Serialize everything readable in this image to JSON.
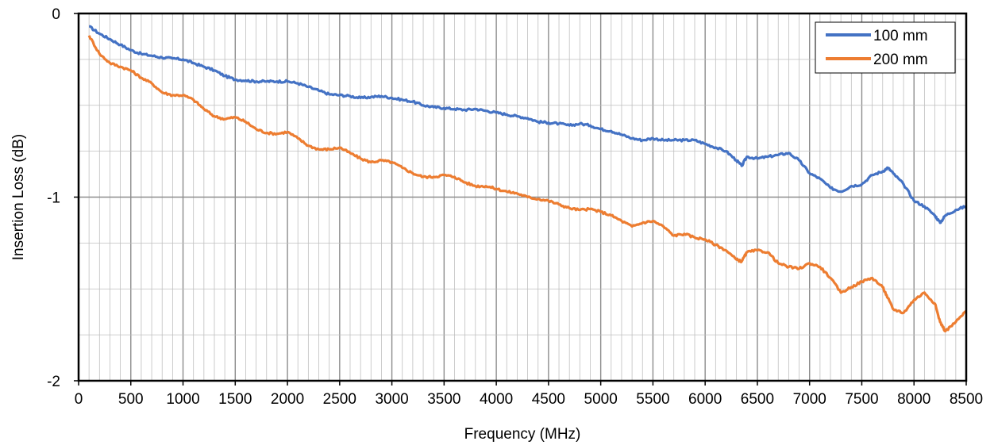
{
  "chart_data": {
    "type": "line",
    "title": "",
    "xlabel": "Frequency (MHz)",
    "ylabel": "Insertion Loss (dB)",
    "xlim": [
      0,
      8500
    ],
    "ylim": [
      -2,
      0
    ],
    "x_ticks": [
      0,
      500,
      1000,
      1500,
      2000,
      2500,
      3000,
      3500,
      4000,
      4500,
      5000,
      5500,
      6000,
      6500,
      7000,
      7500,
      8000,
      8500
    ],
    "x_tick_labels": [
      "0",
      "500",
      "1000",
      "1500",
      "2000",
      "2500",
      "3000",
      "3500",
      "4000",
      "4500",
      "5000",
      "5500",
      "6000",
      "6500",
      "7000",
      "7500",
      "8000",
      "8500"
    ],
    "y_ticks": [
      0,
      -1,
      -2
    ],
    "y_tick_labels": [
      "0",
      "-1",
      "-2"
    ],
    "grid": true,
    "legend_position": "top-right",
    "series": [
      {
        "name": "100 mm",
        "color": "#4472C4",
        "x": [
          100,
          200,
          300,
          400,
          500,
          600,
          700,
          800,
          900,
          1000,
          1100,
          1200,
          1300,
          1400,
          1500,
          1600,
          1700,
          1800,
          1900,
          2000,
          2100,
          2200,
          2300,
          2400,
          2500,
          2600,
          2700,
          2800,
          2900,
          3000,
          3100,
          3200,
          3300,
          3400,
          3500,
          3600,
          3700,
          3800,
          3900,
          4000,
          4100,
          4200,
          4300,
          4400,
          4500,
          4600,
          4700,
          4800,
          4900,
          5000,
          5100,
          5200,
          5300,
          5400,
          5500,
          5600,
          5700,
          5800,
          5900,
          6000,
          6100,
          6200,
          6300,
          6350,
          6400,
          6500,
          6600,
          6700,
          6800,
          6900,
          7000,
          7100,
          7200,
          7300,
          7400,
          7500,
          7600,
          7700,
          7750,
          7800,
          7900,
          8000,
          8100,
          8200,
          8250,
          8300,
          8400,
          8500
        ],
        "y": [
          -0.07,
          -0.11,
          -0.14,
          -0.17,
          -0.2,
          -0.22,
          -0.23,
          -0.24,
          -0.245,
          -0.25,
          -0.27,
          -0.29,
          -0.31,
          -0.34,
          -0.36,
          -0.365,
          -0.37,
          -0.37,
          -0.37,
          -0.37,
          -0.38,
          -0.4,
          -0.42,
          -0.44,
          -0.445,
          -0.45,
          -0.46,
          -0.455,
          -0.45,
          -0.46,
          -0.47,
          -0.48,
          -0.5,
          -0.51,
          -0.515,
          -0.52,
          -0.525,
          -0.52,
          -0.53,
          -0.54,
          -0.55,
          -0.56,
          -0.57,
          -0.59,
          -0.595,
          -0.6,
          -0.61,
          -0.6,
          -0.61,
          -0.63,
          -0.64,
          -0.66,
          -0.68,
          -0.69,
          -0.68,
          -0.69,
          -0.69,
          -0.69,
          -0.69,
          -0.71,
          -0.73,
          -0.75,
          -0.8,
          -0.83,
          -0.78,
          -0.79,
          -0.78,
          -0.77,
          -0.76,
          -0.8,
          -0.87,
          -0.9,
          -0.95,
          -0.97,
          -0.94,
          -0.93,
          -0.88,
          -0.86,
          -0.84,
          -0.87,
          -0.93,
          -1.02,
          -1.05,
          -1.1,
          -1.14,
          -1.1,
          -1.07,
          -1.05
        ]
      },
      {
        "name": "200 mm",
        "color": "#ED7D31",
        "x": [
          100,
          200,
          300,
          400,
          500,
          600,
          700,
          800,
          900,
          1000,
          1100,
          1200,
          1300,
          1400,
          1500,
          1600,
          1700,
          1800,
          1900,
          2000,
          2100,
          2200,
          2300,
          2400,
          2500,
          2600,
          2700,
          2800,
          2900,
          3000,
          3100,
          3200,
          3300,
          3400,
          3500,
          3600,
          3700,
          3800,
          3900,
          4000,
          4100,
          4200,
          4300,
          4400,
          4500,
          4600,
          4700,
          4800,
          4900,
          5000,
          5100,
          5200,
          5300,
          5400,
          5500,
          5600,
          5700,
          5800,
          5900,
          6000,
          6100,
          6200,
          6300,
          6350,
          6400,
          6500,
          6600,
          6700,
          6800,
          6900,
          7000,
          7100,
          7200,
          7300,
          7400,
          7500,
          7600,
          7700,
          7750,
          7800,
          7900,
          8000,
          8100,
          8200,
          8250,
          8300,
          8400,
          8500
        ],
        "y": [
          -0.12,
          -0.22,
          -0.27,
          -0.29,
          -0.31,
          -0.35,
          -0.38,
          -0.43,
          -0.445,
          -0.445,
          -0.47,
          -0.52,
          -0.56,
          -0.575,
          -0.565,
          -0.59,
          -0.63,
          -0.65,
          -0.655,
          -0.645,
          -0.68,
          -0.72,
          -0.74,
          -0.74,
          -0.73,
          -0.76,
          -0.79,
          -0.81,
          -0.8,
          -0.81,
          -0.84,
          -0.87,
          -0.89,
          -0.89,
          -0.88,
          -0.89,
          -0.92,
          -0.94,
          -0.94,
          -0.955,
          -0.97,
          -0.98,
          -1.0,
          -1.01,
          -1.02,
          -1.04,
          -1.06,
          -1.07,
          -1.065,
          -1.08,
          -1.1,
          -1.13,
          -1.16,
          -1.14,
          -1.13,
          -1.16,
          -1.21,
          -1.2,
          -1.22,
          -1.23,
          -1.26,
          -1.29,
          -1.34,
          -1.35,
          -1.3,
          -1.29,
          -1.3,
          -1.36,
          -1.38,
          -1.39,
          -1.36,
          -1.38,
          -1.44,
          -1.52,
          -1.49,
          -1.46,
          -1.44,
          -1.49,
          -1.55,
          -1.61,
          -1.63,
          -1.56,
          -1.52,
          -1.58,
          -1.68,
          -1.73,
          -1.68,
          -1.62
        ]
      }
    ]
  }
}
